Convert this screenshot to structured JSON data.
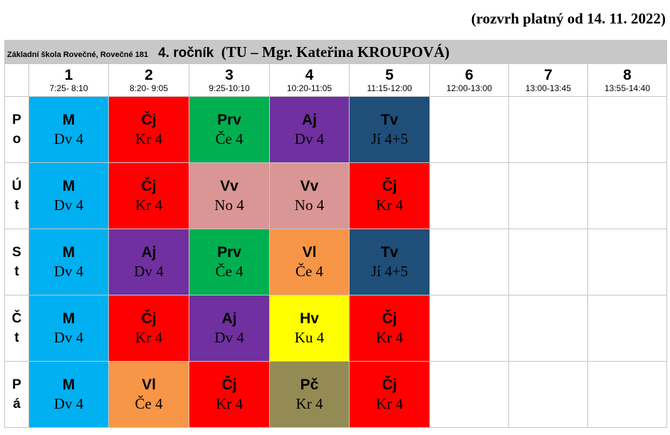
{
  "validity": "(rozvrh platný od 14. 11. 2022)",
  "school": "Základní škola Rovečné, Rovečné 181",
  "class_grade": "4. ročník",
  "class_teacher": "(TU – Mgr. Kateřina KROUPOVÁ)",
  "colors": {
    "c-blue": "#00b0f0",
    "c-red": "#ff0000",
    "c-green": "#00b050",
    "c-purple": "#7030a0",
    "c-navy": "#1f4e79",
    "c-pink": "#da9694",
    "c-orange": "#f79646",
    "c-yellow": "#ffff00",
    "c-olive": "#948a54"
  },
  "periods": [
    {
      "num": "1",
      "time": "7:25- 8:10"
    },
    {
      "num": "2",
      "time": "8:20- 9:05"
    },
    {
      "num": "3",
      "time": "9:25-10:10"
    },
    {
      "num": "4",
      "time": "10:20-11:05"
    },
    {
      "num": "5",
      "time": "11:15-12:00"
    },
    {
      "num": "6",
      "time": "12:00-13:00"
    },
    {
      "num": "7",
      "time": "13:00-13:45"
    },
    {
      "num": "8",
      "time": "13:55-14:40"
    }
  ],
  "days": [
    {
      "l1": "P",
      "l2": "o",
      "lessons": [
        {
          "subject": "M",
          "teacher": "Dv 4",
          "color": "c-blue"
        },
        {
          "subject": "Čj",
          "teacher": "Kr 4",
          "color": "c-red"
        },
        {
          "subject": "Prv",
          "teacher": "Če 4",
          "color": "c-green"
        },
        {
          "subject": "Aj",
          "teacher": "Dv 4",
          "color": "c-purple"
        },
        {
          "subject": "Tv",
          "teacher": "Jí 4+5",
          "color": "c-navy"
        }
      ]
    },
    {
      "l1": "Ú",
      "l2": "t",
      "lessons": [
        {
          "subject": "M",
          "teacher": "Dv 4",
          "color": "c-blue"
        },
        {
          "subject": "Čj",
          "teacher": "Kr 4",
          "color": "c-red"
        },
        {
          "subject": "Vv",
          "teacher": "No 4",
          "color": "c-pink"
        },
        {
          "subject": "Vv",
          "teacher": "No 4",
          "color": "c-pink"
        },
        {
          "subject": "Čj",
          "teacher": "Kr 4",
          "color": "c-red"
        }
      ]
    },
    {
      "l1": "S",
      "l2": "t",
      "lessons": [
        {
          "subject": "M",
          "teacher": "Dv 4",
          "color": "c-blue"
        },
        {
          "subject": "Aj",
          "teacher": "Dv 4",
          "color": "c-purple"
        },
        {
          "subject": "Prv",
          "teacher": "Če 4",
          "color": "c-green"
        },
        {
          "subject": "Vl",
          "teacher": "Če 4",
          "color": "c-orange"
        },
        {
          "subject": "Tv",
          "teacher": "Jí 4+5",
          "color": "c-navy"
        }
      ]
    },
    {
      "l1": "Č",
      "l2": "t",
      "lessons": [
        {
          "subject": "M",
          "teacher": "Dv 4",
          "color": "c-blue"
        },
        {
          "subject": "Čj",
          "teacher": "Kr 4",
          "color": "c-red"
        },
        {
          "subject": "Aj",
          "teacher": "Dv 4",
          "color": "c-purple"
        },
        {
          "subject": "Hv",
          "teacher": "Ku 4",
          "color": "c-yellow"
        },
        {
          "subject": "Čj",
          "teacher": "Kr 4",
          "color": "c-red"
        }
      ]
    },
    {
      "l1": "P",
      "l2": "á",
      "lessons": [
        {
          "subject": "M",
          "teacher": "Dv 4",
          "color": "c-blue"
        },
        {
          "subject": "Vl",
          "teacher": "Če 4",
          "color": "c-orange"
        },
        {
          "subject": "Čj",
          "teacher": "Kr 4",
          "color": "c-red"
        },
        {
          "subject": "Pč",
          "teacher": "Kr 4",
          "color": "c-olive"
        },
        {
          "subject": "Čj",
          "teacher": "Kr 4",
          "color": "c-red"
        }
      ]
    }
  ]
}
